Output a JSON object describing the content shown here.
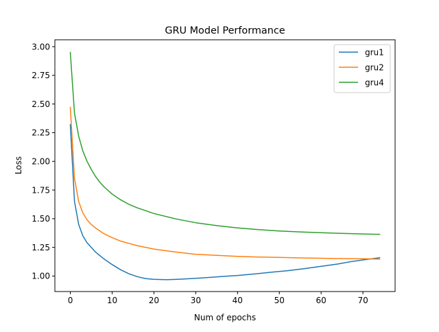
{
  "chart_data": {
    "type": "line",
    "title": "GRU Model Performance",
    "xlabel": "Num of epochs",
    "ylabel": "Loss",
    "xlim": [
      -3.7,
      77.7
    ],
    "ylim": [
      0.865,
      3.06
    ],
    "xticks": [
      0,
      10,
      20,
      30,
      40,
      50,
      60,
      70
    ],
    "yticks": [
      1.0,
      1.25,
      1.5,
      1.75,
      2.0,
      2.25,
      2.5,
      2.75,
      3.0
    ],
    "ytick_labels": [
      "1.00",
      "1.25",
      "1.50",
      "1.75",
      "2.00",
      "2.25",
      "2.50",
      "2.75",
      "3.00"
    ],
    "grid": false,
    "legend": "top-right",
    "series": [
      {
        "name": "gru1",
        "color": "#1f77b4",
        "x": [
          0,
          1,
          2,
          3,
          4,
          5,
          6,
          8,
          10,
          12,
          14,
          16,
          18,
          20,
          23,
          26,
          30,
          34,
          37,
          40,
          44,
          48,
          52,
          56,
          60,
          64,
          67,
          70,
          74
        ],
        "y": [
          2.32,
          1.65,
          1.45,
          1.35,
          1.29,
          1.25,
          1.21,
          1.15,
          1.1,
          1.055,
          1.02,
          0.995,
          0.978,
          0.971,
          0.968,
          0.972,
          0.98,
          0.99,
          0.998,
          1.005,
          1.018,
          1.033,
          1.047,
          1.065,
          1.085,
          1.105,
          1.125,
          1.14,
          1.16
        ]
      },
      {
        "name": "gru2",
        "color": "#ff7f0e",
        "x": [
          0,
          1,
          2,
          3,
          4,
          5,
          6,
          8,
          10,
          12,
          14,
          16,
          18,
          20,
          25,
          30,
          35,
          40,
          45,
          50,
          55,
          60,
          65,
          70,
          74
        ],
        "y": [
          2.47,
          1.85,
          1.65,
          1.55,
          1.49,
          1.45,
          1.42,
          1.37,
          1.335,
          1.305,
          1.285,
          1.265,
          1.25,
          1.235,
          1.21,
          1.19,
          1.18,
          1.172,
          1.166,
          1.162,
          1.158,
          1.155,
          1.152,
          1.15,
          1.148
        ]
      },
      {
        "name": "gru4",
        "color": "#2ca02c",
        "x": [
          0,
          1,
          2,
          3,
          4,
          5,
          6,
          7,
          8,
          10,
          12,
          14,
          16,
          18,
          20,
          25,
          30,
          35,
          40,
          45,
          50,
          55,
          60,
          65,
          70,
          74
        ],
        "y": [
          2.95,
          2.42,
          2.22,
          2.09,
          2.0,
          1.93,
          1.87,
          1.82,
          1.78,
          1.715,
          1.665,
          1.625,
          1.595,
          1.57,
          1.545,
          1.5,
          1.465,
          1.44,
          1.42,
          1.405,
          1.393,
          1.385,
          1.378,
          1.372,
          1.367,
          1.364
        ]
      }
    ]
  }
}
